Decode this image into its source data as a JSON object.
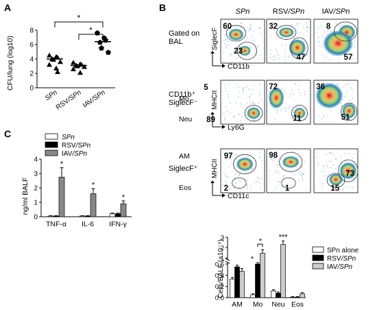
{
  "panel_labels": {
    "a": "A",
    "b": "B",
    "c": "C"
  },
  "chart_data": [
    {
      "panel": "A",
      "type": "scatter",
      "ylabel": "CFU/lung (log10)",
      "ylim": [
        0,
        8
      ],
      "yticks": [
        "0",
        "2",
        "4",
        "6",
        "8"
      ],
      "categories": [
        "SPn",
        "RSV/SPn",
        "IAV/SPn"
      ],
      "markers": [
        "triangle",
        "triangle",
        "pentagon"
      ],
      "points": [
        [
          4.5,
          4.3,
          4.2,
          4.0,
          3.9,
          3.6,
          3.2,
          2.7,
          2.2
        ],
        [
          3.5,
          3.3,
          3.2,
          3.1,
          3.0,
          2.9,
          2.6,
          2.1
        ],
        [
          7.6,
          6.9,
          6.6,
          6.3,
          5.5,
          4.9
        ]
      ],
      "medians": [
        4.0,
        3.1,
        6.4
      ],
      "significance": [
        {
          "pair": [
            0,
            2
          ],
          "label": "*"
        },
        {
          "pair": [
            1,
            2
          ],
          "label": "*"
        }
      ]
    },
    {
      "panel": "C",
      "type": "bar",
      "ylabel": "ng/ml BALF",
      "ylim": [
        0,
        4
      ],
      "yticks": [
        "0",
        "1",
        "2",
        "3",
        "4"
      ],
      "categories": [
        "TNF-α",
        "IL-6",
        "IFN-γ"
      ],
      "series": [
        {
          "name": "SPn",
          "color": "#ffffff",
          "values": [
            0.05,
            0.05,
            0.2
          ],
          "errors": [
            0.02,
            0.02,
            0.05
          ]
        },
        {
          "name": "RSV/SPn",
          "color": "#000000",
          "values": [
            0.05,
            0.05,
            0.2
          ],
          "errors": [
            0.02,
            0.02,
            0.05
          ]
        },
        {
          "name": "IAV/SPn",
          "color": "#888888",
          "values": [
            2.75,
            1.6,
            0.9
          ],
          "errors": [
            0.65,
            0.35,
            0.2
          ]
        }
      ],
      "stars": [
        "*",
        "*",
        "*"
      ]
    },
    {
      "panel": "B",
      "type": "bar",
      "ylabel": "Cells/BALF (×10⁻⁵)",
      "yaxis_break": [
        0.6,
        1.0
      ],
      "yticks_lower": [
        "0.0",
        "0.2",
        "0.4",
        "0.6"
      ],
      "yticks_upper": [
        "1",
        "2",
        "3"
      ],
      "categories": [
        "AM",
        "Mo",
        "Neu",
        "Eos"
      ],
      "series": [
        {
          "name": "SPn alone",
          "color": "#ffffff",
          "values": [
            0.33,
            0.05,
            0.12,
            0.01
          ],
          "errors": [
            0.03,
            0.02,
            0.02,
            0.01
          ]
        },
        {
          "name": "RSV/SPn",
          "color": "#000000",
          "values": [
            0.55,
            0.6,
            0.08,
            0.01
          ],
          "errors": [
            0.03,
            0.05,
            0.02,
            0.01
          ]
        },
        {
          "name": "IAV/SPn",
          "color": "#cccccc",
          "values": [
            0.47,
            1.45,
            2.3,
            0.07
          ],
          "errors": [
            0.05,
            0.35,
            0.35,
            0.02
          ]
        }
      ],
      "significance": [
        "*",
        "*",
        "***"
      ]
    }
  ],
  "flow": {
    "columns": [
      "SPn",
      "RSV/SPn",
      "IAV/SPn"
    ],
    "rows": [
      {
        "label_lines": [
          "Gated on",
          "BAL"
        ],
        "ylabel": "SiglecF",
        "xlabel": "CD11b",
        "values": [
          [
            "60",
            "23"
          ],
          [
            "32",
            "47"
          ],
          [
            "8",
            "57"
          ]
        ]
      },
      {
        "label_lines": [
          "CD11b⁺",
          "SiglecF⁻"
        ],
        "ylabel": "MHCII",
        "xlabel": "Ly6G",
        "gate_names": [
          "Mo",
          "Neu"
        ],
        "values": [
          [
            "5",
            "89"
          ],
          [
            "72",
            "11"
          ],
          [
            "36",
            "51"
          ]
        ]
      },
      {
        "label_lines": [
          "SiglecF⁺"
        ],
        "ylabel": "MHCII",
        "xlabel": "CD11c",
        "gate_names": [
          "AM",
          "Eos"
        ],
        "values": [
          [
            "97",
            "2"
          ],
          [
            "98",
            "1"
          ],
          [
            "15",
            "73"
          ]
        ]
      }
    ]
  }
}
